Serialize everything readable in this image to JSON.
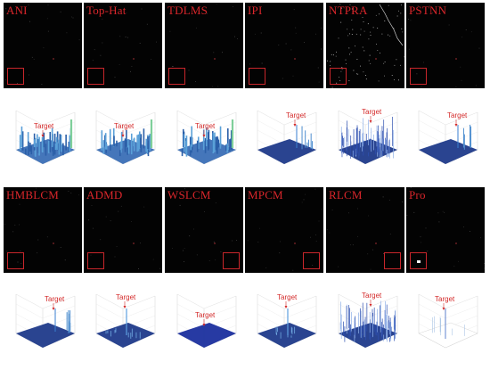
{
  "rows": [
    {
      "panels": [
        {
          "label": "ANI",
          "box": "left"
        },
        {
          "label": "Top-Hat",
          "box": "left"
        },
        {
          "label": "TDLMS",
          "box": "left"
        },
        {
          "label": "IPI",
          "box": "left"
        },
        {
          "label": "NTPRA",
          "box": "left"
        },
        {
          "label": "PSTNN",
          "box": "left"
        }
      ]
    },
    {
      "panels": [
        {
          "label": "HMBLCM",
          "box": "left"
        },
        {
          "label": "ADMD",
          "box": "left"
        },
        {
          "label": "WSLCM",
          "box": "right"
        },
        {
          "label": "MPCM",
          "box": "right"
        },
        {
          "label": "RLCM",
          "box": "right"
        },
        {
          "label": "Pro",
          "box": "left"
        }
      ]
    }
  ],
  "plots": {
    "target_label": "Target",
    "row1": [
      {
        "style": "clutter-wide",
        "color": "#3b6fb6"
      },
      {
        "style": "clutter-wide",
        "color": "#3b6fb6"
      },
      {
        "style": "clutter-wide",
        "color": "#3b6fb6"
      },
      {
        "style": "peak-right",
        "color": "#1f3a8a"
      },
      {
        "style": "spiky",
        "color": "#1f3a8a"
      },
      {
        "style": "peak-right",
        "color": "#1f3a8a"
      }
    ],
    "row2": [
      {
        "style": "peak-right",
        "color": "#1f3a8a"
      },
      {
        "style": "peak-center",
        "color": "#1f3a8a"
      },
      {
        "style": "flat",
        "color": "#1b2f9e"
      },
      {
        "style": "peak-center",
        "color": "#1f3a8a"
      },
      {
        "style": "spiky",
        "color": "#1f3a8a"
      },
      {
        "style": "single-peak",
        "color": "#ffffff"
      }
    ]
  }
}
